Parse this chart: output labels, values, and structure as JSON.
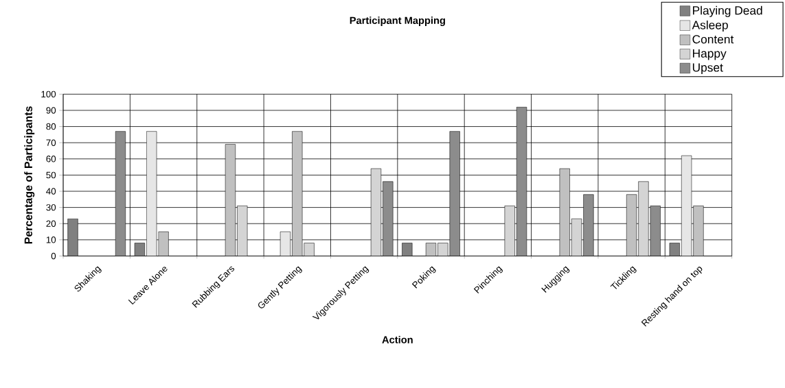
{
  "chart_data": {
    "type": "bar",
    "title": "Participant Mapping",
    "xlabel": "Action",
    "ylabel": "Percentage of Participants",
    "categories": [
      "Shaking",
      "Leave Alone",
      "Rubbing Ears",
      "Gently Petting",
      "Vigorously Petting",
      "Poking",
      "Pinching",
      "Hugging",
      "Tickling",
      "Resting hand on top"
    ],
    "series": [
      {
        "name": "Playing Dead",
        "color": "#808080",
        "values": [
          23,
          8,
          null,
          null,
          null,
          8,
          null,
          null,
          null,
          8
        ]
      },
      {
        "name": "Asleep",
        "color": "#e6e6e6",
        "values": [
          null,
          77,
          null,
          15,
          null,
          null,
          null,
          null,
          null,
          62
        ]
      },
      {
        "name": "Content",
        "color": "#c0c0c0",
        "values": [
          null,
          15,
          69,
          77,
          null,
          8,
          null,
          54,
          38,
          31
        ]
      },
      {
        "name": "Happy",
        "color": "#d4d4d4",
        "values": [
          null,
          null,
          31,
          8,
          54,
          8,
          31,
          23,
          46,
          null
        ]
      },
      {
        "name": "Upset",
        "color": "#8c8c8c",
        "values": [
          77,
          null,
          null,
          null,
          46,
          77,
          92,
          38,
          31,
          null
        ]
      }
    ],
    "ylim": [
      0,
      100
    ],
    "yticks": [
      0,
      10,
      20,
      30,
      40,
      50,
      60,
      70,
      80,
      90,
      100
    ],
    "grid": true,
    "legend": "top right"
  }
}
